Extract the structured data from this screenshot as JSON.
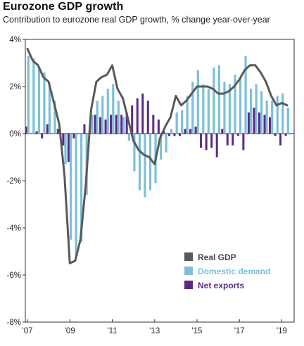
{
  "title": "Eurozone GDP growth",
  "subtitle": "Contribution to eurozone real GDP growth, % change year-over-year",
  "colors": {
    "real_gdp": "#595959",
    "domestic_demand": "#7dbfd9",
    "net_exports": "#5b2a86"
  },
  "chart_data": {
    "type": "bar",
    "y_ticks": [
      "4%",
      "2%",
      "0%",
      "-2%",
      "-4%",
      "-6%",
      "-8%"
    ],
    "x_ticks": [
      "'07",
      "'09",
      "'11",
      "'13",
      "'15",
      "'17",
      "'19"
    ],
    "ylim": [
      -8,
      4
    ],
    "xlim": [
      2007.0,
      2019.25
    ],
    "grid": false,
    "legend_position": "bottom-right",
    "x": [
      2007.0,
      2007.25,
      2007.5,
      2007.75,
      2008.0,
      2008.25,
      2008.5,
      2008.75,
      2009.0,
      2009.25,
      2009.5,
      2009.75,
      2010.0,
      2010.25,
      2010.5,
      2010.75,
      2011.0,
      2011.25,
      2011.5,
      2011.75,
      2012.0,
      2012.25,
      2012.5,
      2012.75,
      2013.0,
      2013.25,
      2013.5,
      2013.75,
      2014.0,
      2014.25,
      2014.5,
      2014.75,
      2015.0,
      2015.25,
      2015.5,
      2015.75,
      2016.0,
      2016.25,
      2016.5,
      2016.75,
      2017.0,
      2017.25,
      2017.5,
      2017.75,
      2018.0,
      2018.25,
      2018.5,
      2018.75,
      2019.0,
      2019.25
    ],
    "series": [
      {
        "name": "Real GDP",
        "type": "line",
        "values": [
          3.6,
          3.1,
          2.9,
          2.4,
          2.2,
          1.3,
          0.4,
          -1.8,
          -5.5,
          -5.4,
          -4.5,
          -2.2,
          1.0,
          2.2,
          2.4,
          2.5,
          2.9,
          1.9,
          1.5,
          0.6,
          -0.3,
          -0.7,
          -0.9,
          -1.0,
          -1.3,
          -0.2,
          0.3,
          0.7,
          1.6,
          1.2,
          1.4,
          1.7,
          2.0,
          2.0,
          2.0,
          1.9,
          1.7,
          1.7,
          1.8,
          2.0,
          2.3,
          2.7,
          2.9,
          2.9,
          2.6,
          2.2,
          1.6,
          1.2,
          1.3,
          1.2
        ]
      },
      {
        "name": "Domestic demand",
        "type": "bar",
        "values": [
          3.3,
          3.2,
          2.8,
          2.6,
          2.1,
          1.4,
          0.2,
          -1.3,
          -4.5,
          -5.2,
          -4.6,
          -2.6,
          0.8,
          1.4,
          1.6,
          1.9,
          2.1,
          1.4,
          0.7,
          -0.3,
          -1.6,
          -2.4,
          -2.7,
          -2.4,
          -2.1,
          -1.1,
          -0.8,
          0.2,
          0.9,
          1.0,
          1.6,
          2.2,
          2.7,
          2.1,
          1.9,
          2.8,
          2.9,
          2.2,
          2.1,
          2.5,
          2.4,
          3.3,
          1.9,
          2.1,
          1.8,
          1.4,
          1.4,
          1.6,
          1.7,
          1.1
        ]
      },
      {
        "name": "Net exports",
        "type": "bar",
        "values": [
          0.3,
          0.0,
          0.1,
          -0.2,
          0.4,
          0.0,
          0.2,
          -0.5,
          -1.2,
          -0.2,
          0.0,
          0.4,
          0.1,
          0.8,
          0.7,
          0.6,
          0.8,
          0.8,
          0.8,
          0.9,
          1.2,
          1.5,
          1.7,
          1.4,
          0.8,
          0.6,
          0.1,
          -0.1,
          -0.1,
          -0.1,
          0.2,
          0.2,
          0.3,
          -0.6,
          -0.7,
          -0.6,
          -1.0,
          0.2,
          -0.5,
          -0.5,
          -0.1,
          -0.7,
          0.9,
          1.1,
          0.9,
          0.8,
          0.7,
          -0.1,
          -0.5,
          -0.1
        ]
      }
    ]
  }
}
